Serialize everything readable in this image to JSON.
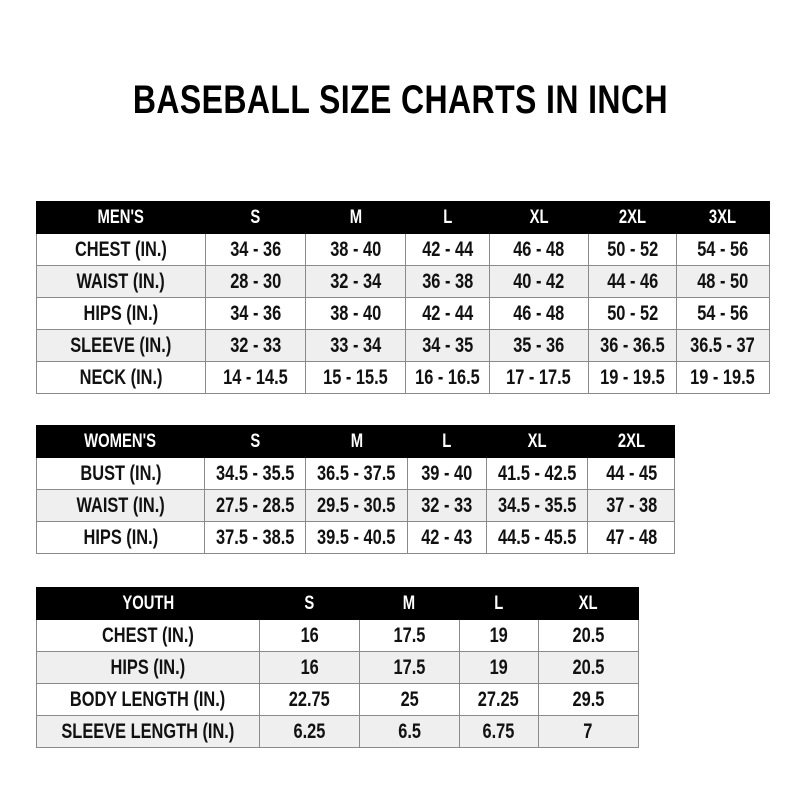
{
  "title": "BASEBALL SIZE CHARTS IN INCH",
  "tables": [
    {
      "header": [
        "MEN'S",
        "S",
        "M",
        "L",
        "XL",
        "2XL",
        "3XL"
      ],
      "rows": [
        {
          "label": "CHEST (IN.)",
          "values": [
            "34 - 36",
            "38 - 40",
            "42 - 44",
            "46 - 48",
            "50 - 52",
            "54 - 56"
          ]
        },
        {
          "label": "WAIST (IN.)",
          "values": [
            "28 - 30",
            "32 - 34",
            "36 - 38",
            "40 - 42",
            "44 - 46",
            "48 - 50"
          ]
        },
        {
          "label": "HIPS (IN.)",
          "values": [
            "34 - 36",
            "38 - 40",
            "42 - 44",
            "46 - 48",
            "50 - 52",
            "54 - 56"
          ]
        },
        {
          "label": "SLEEVE (IN.)",
          "values": [
            "32 - 33",
            "33 - 34",
            "34 - 35",
            "35 - 36",
            "36 - 36.5",
            "36.5 - 37"
          ]
        },
        {
          "label": "NECK (IN.)",
          "values": [
            "14 - 14.5",
            "15 - 15.5",
            "16 - 16.5",
            "17 - 17.5",
            "19 - 19.5",
            "19 - 19.5"
          ]
        }
      ]
    },
    {
      "header": [
        "WOMEN'S",
        "S",
        "M",
        "L",
        "XL",
        "2XL"
      ],
      "rows": [
        {
          "label": "BUST (IN.)",
          "values": [
            "34.5 - 35.5",
            "36.5 - 37.5",
            "39 - 40",
            "41.5 - 42.5",
            "44 - 45"
          ]
        },
        {
          "label": "WAIST (IN.)",
          "values": [
            "27.5 - 28.5",
            "29.5 - 30.5",
            "32 - 33",
            "34.5 - 35.5",
            "37 - 38"
          ]
        },
        {
          "label": "HIPS (IN.)",
          "values": [
            "37.5 - 38.5",
            "39.5 - 40.5",
            "42 - 43",
            "44.5 - 45.5",
            "47 - 48"
          ]
        }
      ]
    },
    {
      "header": [
        "YOUTH",
        "S",
        "M",
        "L",
        "XL"
      ],
      "rows": [
        {
          "label": "CHEST (IN.)",
          "values": [
            "16",
            "17.5",
            "19",
            "20.5"
          ]
        },
        {
          "label": "HIPS (IN.)",
          "values": [
            "16",
            "17.5",
            "19",
            "20.5"
          ]
        },
        {
          "label": "BODY LENGTH (IN.)",
          "values": [
            "22.75",
            "25",
            "27.25",
            "29.5"
          ]
        },
        {
          "label": "SLEEVE LENGTH (IN.)",
          "values": [
            "6.25",
            "6.5",
            "6.75",
            "7"
          ]
        }
      ]
    }
  ],
  "colors": {
    "header_bg": "#000000",
    "header_text": "#ffffff",
    "alt_row": "#efefef",
    "border": "#8a8a8a"
  }
}
